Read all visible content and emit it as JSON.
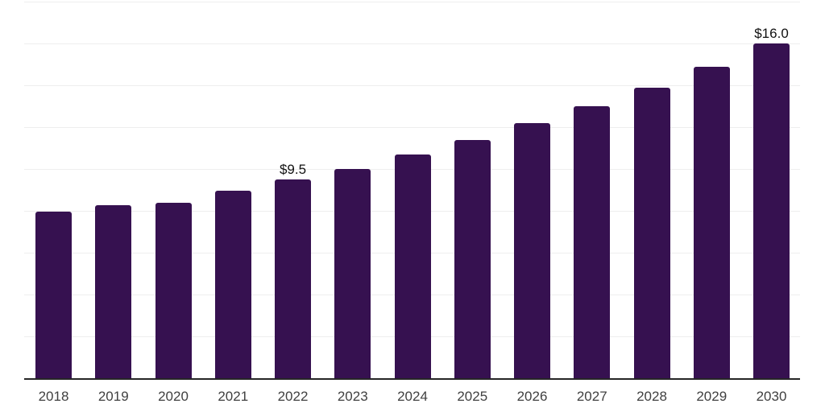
{
  "chart_data": {
    "type": "bar",
    "title": "",
    "xlabel": "",
    "ylabel": "",
    "categories": [
      "2018",
      "2019",
      "2020",
      "2021",
      "2022",
      "2023",
      "2024",
      "2025",
      "2026",
      "2027",
      "2028",
      "2029",
      "2030"
    ],
    "values": [
      8.0,
      8.3,
      8.4,
      9.0,
      9.5,
      10.0,
      10.7,
      11.4,
      12.2,
      13.0,
      13.9,
      14.9,
      16.0
    ],
    "data_labels": {
      "2022": "$9.5",
      "2030": "$16.0"
    },
    "ylim": [
      0,
      18
    ],
    "gridline_step": 2,
    "grid": true,
    "legend": "none",
    "y_tick_labels_visible": false,
    "colors": {
      "bar": "#361150",
      "axis_line": "#262626",
      "gridline": "#eeeeee",
      "x_label_text": "#404040",
      "data_label_text": "#111111",
      "background": "#ffffff"
    }
  }
}
